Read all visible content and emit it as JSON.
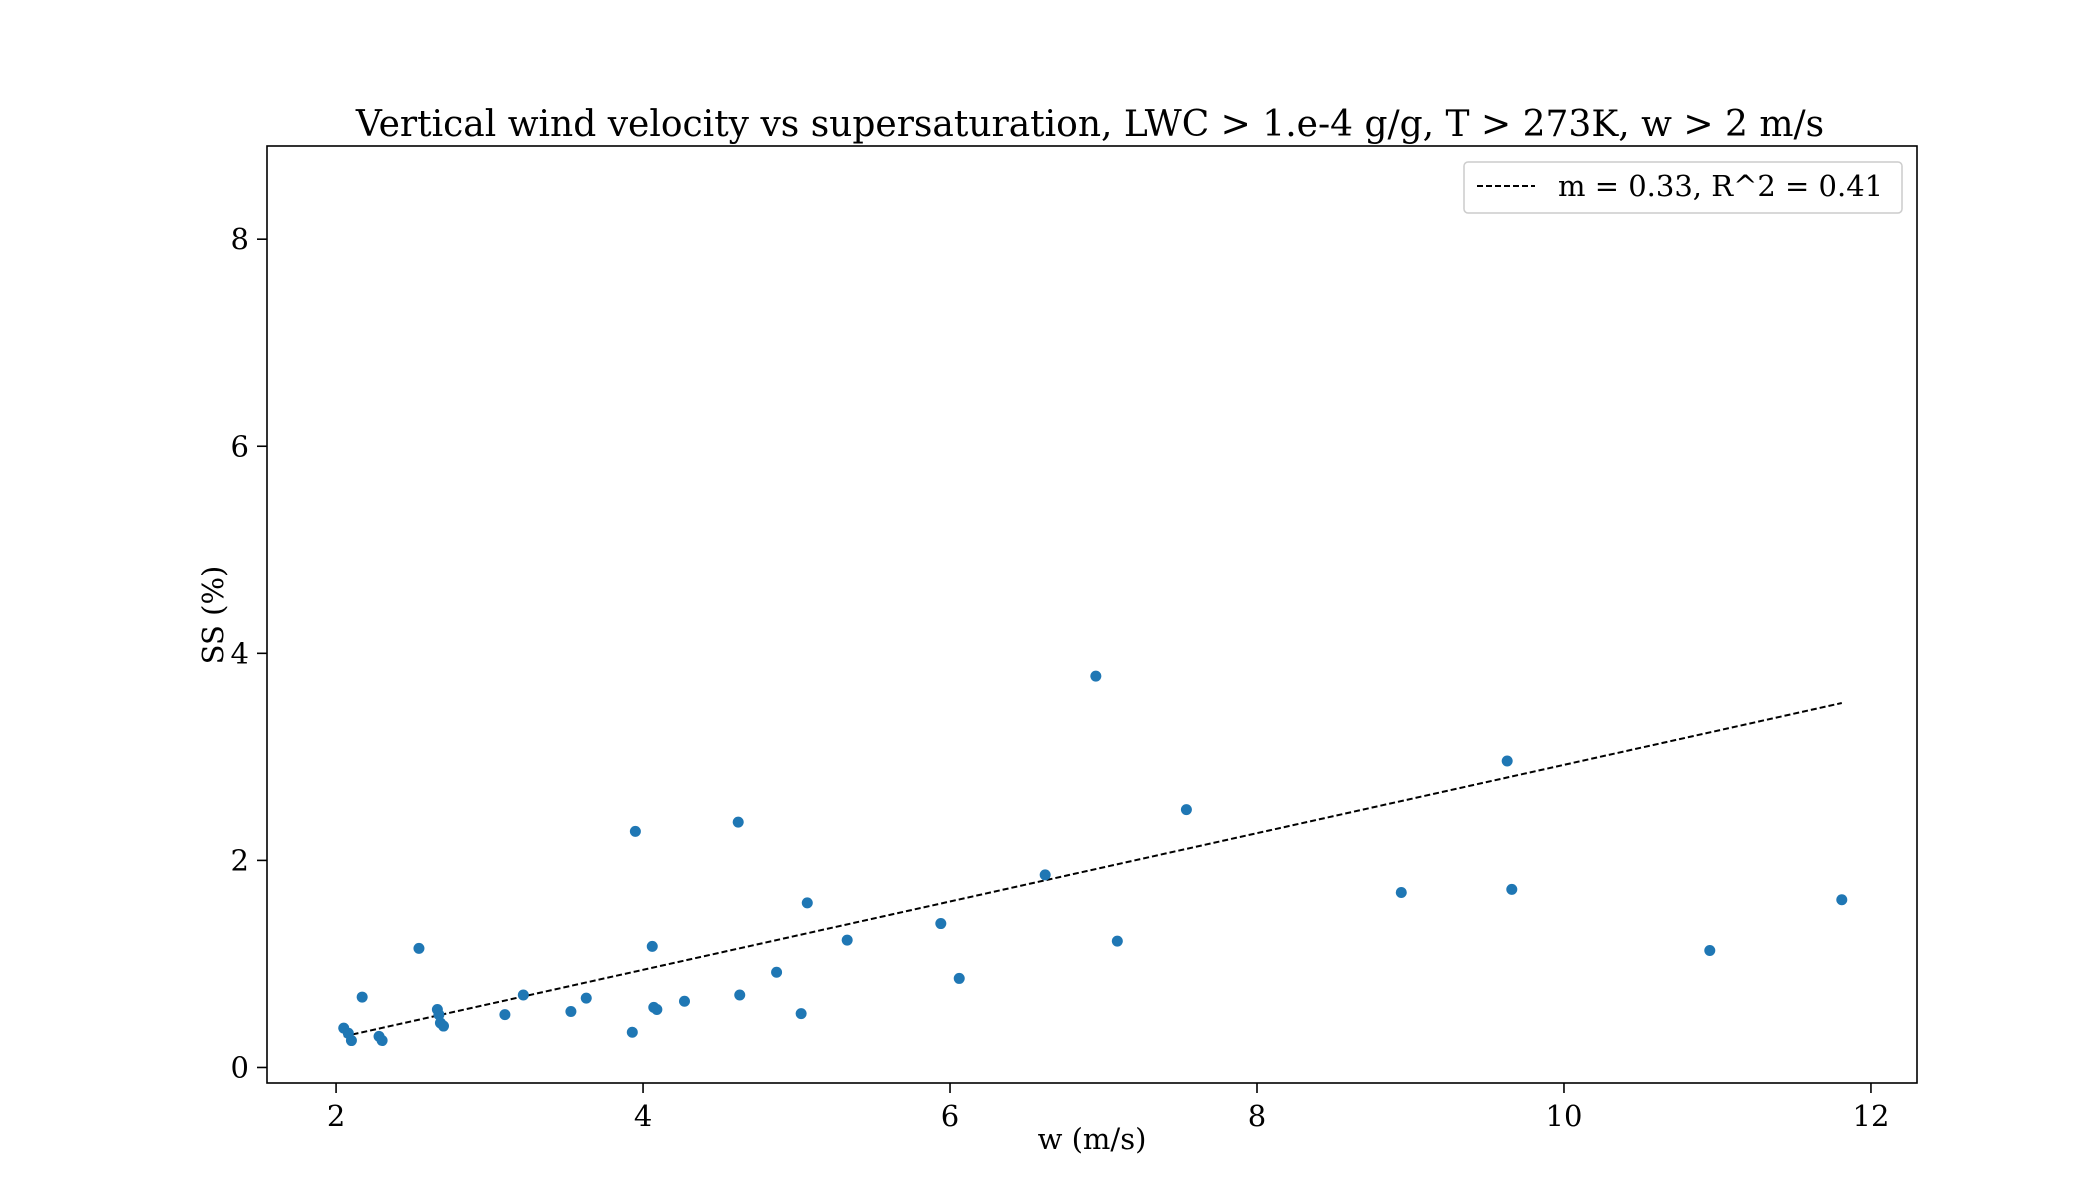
{
  "chart_data": {
    "type": "scatter",
    "title": "Vertical wind velocity vs supersaturation, LWC > 1.e-4 g/g, T > 273K, w > 2 m/s",
    "xlabel": "w (m/s)",
    "ylabel": "SS (%)",
    "xlim": [
      1.55,
      12.3
    ],
    "ylim": [
      -0.15,
      8.9
    ],
    "xticks": [
      2,
      4,
      6,
      8,
      10,
      12
    ],
    "yticks": [
      0,
      2,
      4,
      6,
      8
    ],
    "grid": false,
    "legend_position": "top-right",
    "point_color": "#1f77b4",
    "points": [
      {
        "x": 2.05,
        "y": 0.38
      },
      {
        "x": 2.08,
        "y": 0.33
      },
      {
        "x": 2.1,
        "y": 0.26
      },
      {
        "x": 2.17,
        "y": 0.68
      },
      {
        "x": 2.28,
        "y": 0.3
      },
      {
        "x": 2.3,
        "y": 0.26
      },
      {
        "x": 2.54,
        "y": 1.15
      },
      {
        "x": 2.66,
        "y": 0.56
      },
      {
        "x": 2.67,
        "y": 0.51
      },
      {
        "x": 2.68,
        "y": 0.43
      },
      {
        "x": 2.7,
        "y": 0.4
      },
      {
        "x": 3.1,
        "y": 0.51
      },
      {
        "x": 3.22,
        "y": 0.7
      },
      {
        "x": 3.53,
        "y": 0.54
      },
      {
        "x": 3.63,
        "y": 0.67
      },
      {
        "x": 3.93,
        "y": 0.34
      },
      {
        "x": 3.95,
        "y": 2.28
      },
      {
        "x": 4.06,
        "y": 1.17
      },
      {
        "x": 4.07,
        "y": 0.58
      },
      {
        "x": 4.09,
        "y": 0.56
      },
      {
        "x": 4.27,
        "y": 0.64
      },
      {
        "x": 4.62,
        "y": 2.37
      },
      {
        "x": 4.63,
        "y": 0.7
      },
      {
        "x": 4.87,
        "y": 0.92
      },
      {
        "x": 5.03,
        "y": 0.52
      },
      {
        "x": 5.07,
        "y": 1.59
      },
      {
        "x": 5.33,
        "y": 1.23
      },
      {
        "x": 5.94,
        "y": 1.39
      },
      {
        "x": 6.06,
        "y": 0.86
      },
      {
        "x": 6.62,
        "y": 1.86
      },
      {
        "x": 6.95,
        "y": 3.78
      },
      {
        "x": 7.09,
        "y": 1.22
      },
      {
        "x": 7.54,
        "y": 2.49
      },
      {
        "x": 8.94,
        "y": 1.69
      },
      {
        "x": 9.63,
        "y": 2.96
      },
      {
        "x": 9.66,
        "y": 1.72
      },
      {
        "x": 10.95,
        "y": 1.13
      },
      {
        "x": 11.81,
        "y": 1.62
      }
    ],
    "fit_line": {
      "label": "m = 0.33, R^2 = 0.41",
      "color": "#000000",
      "style": "dashed",
      "x": [
        2.05,
        11.81
      ],
      "y": [
        0.3,
        3.52
      ]
    }
  }
}
